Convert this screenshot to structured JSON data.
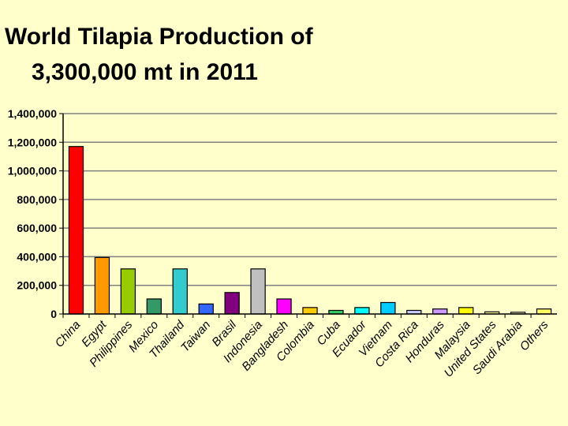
{
  "chart_data": {
    "type": "bar",
    "title_line1": "World Tilapia Production of",
    "title_line2": "3,300,000  mt in 2011",
    "xlabel": "",
    "ylabel": "",
    "ylim": [
      0,
      1400000
    ],
    "yticks": [
      0,
      200000,
      400000,
      600000,
      800000,
      1000000,
      1200000,
      1400000
    ],
    "ytick_labels": [
      "0",
      "200,000",
      "400,000",
      "600,000",
      "800,000",
      "1,000,000",
      "1,200,000",
      "1,400,000"
    ],
    "grid": true,
    "legend": "none",
    "categories": [
      "China",
      "Egypt",
      "Philippines",
      "Mexico",
      "Thailand",
      "Taiwan",
      "Brasil",
      "Indonesia",
      "Bangladesh",
      "Colombia",
      "Cuba",
      "Ecuador",
      "Vietnam",
      "Costa Rica",
      "Honduras",
      "Malaysia",
      "United States",
      "Saudi Arabia",
      "Others"
    ],
    "values": [
      1170000,
      395000,
      315000,
      105000,
      315000,
      70000,
      150000,
      315000,
      105000,
      45000,
      25000,
      45000,
      80000,
      25000,
      35000,
      45000,
      15000,
      12000,
      35000
    ],
    "colors": [
      "#ff0000",
      "#ff9900",
      "#99cc00",
      "#339966",
      "#33cccc",
      "#3366ff",
      "#800080",
      "#c0c0c0",
      "#ff00ff",
      "#ffcc00",
      "#33cc66",
      "#00ffff",
      "#00ccff",
      "#ccccff",
      "#cc99ff",
      "#ffff00",
      "#ffff99",
      "#ffffcc",
      "#ffff66"
    ]
  }
}
